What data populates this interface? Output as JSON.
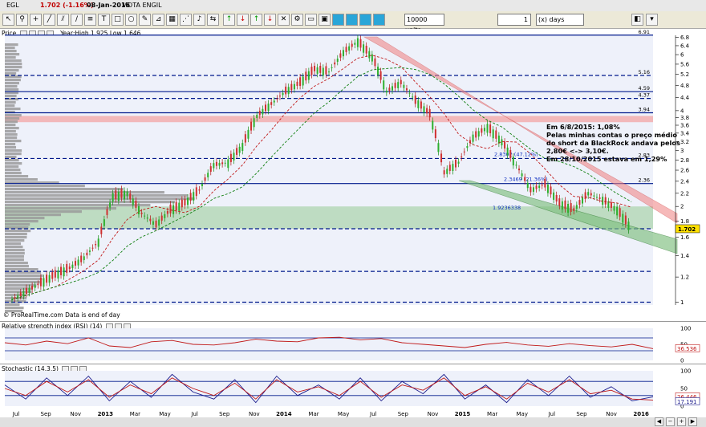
{
  "window": {
    "instrument": "EGL",
    "last_price": "1.702 (-1.16%)",
    "date": "08-Jan-2016",
    "company": "MOTA ENGIL"
  },
  "toolbar": {
    "units_value": "10000 units",
    "period_value": "1",
    "period_unit": "(x) days"
  },
  "price_panel": {
    "label": "Price",
    "range_text": "Year:High 1.925 Low 1.646",
    "footer": "© ProRealTime.com  Data is end of day",
    "current_price_badge": "1.702",
    "level_labels": [
      "6.91",
      "5.16",
      "4.59",
      "4.37",
      "3.94",
      "2.83",
      "2.36"
    ],
    "fib_labels": [
      "2.8302 (47.12%)",
      "2.3469 (21.36%)",
      "1.9236338"
    ]
  },
  "annotation": {
    "lines": [
      "Em 6/8/2015: 1,08%",
      "Pelas minhas contas o preço médio",
      "do short da BlackRock andava pelos",
      "2,80€ <-> 3,10€.",
      "Em 28/10/2015 estava em 1,29%"
    ]
  },
  "rsi_panel": {
    "label": "Relative strength index (RSI) (14)",
    "value": "36.536",
    "ticks": [
      "100",
      "50",
      "0"
    ]
  },
  "stoch_panel": {
    "label": "Stochastic (14,3,5)",
    "value1": "26.446",
    "value2": "17.191",
    "ticks": [
      "100",
      "50",
      "0"
    ]
  },
  "chart_data": {
    "type": "line",
    "x_ticks": [
      "Jul",
      "Sep",
      "Nov",
      "2013",
      "Mar",
      "May",
      "Jul",
      "Sep",
      "Nov",
      "2014",
      "Mar",
      "May",
      "Jul",
      "Sep",
      "Nov",
      "2015",
      "Mar",
      "May",
      "Jul",
      "Sep",
      "Nov",
      "2016"
    ],
    "y_ticks": [
      "6.8",
      "6.4",
      "6",
      "5.6",
      "5.2",
      "4.8",
      "4.4",
      "4",
      "3.8",
      "3.6",
      "3.4",
      "3.2",
      "3",
      "2.8",
      "2.6",
      "2.4",
      "2.2",
      "2",
      "1.8",
      "1.6",
      "1.4",
      "1.2",
      "1"
    ],
    "y_scale": "log",
    "ylim": [
      0.98,
      6.9
    ],
    "series": [
      {
        "values": [
          [
            "2012-06",
            1.02
          ],
          [
            "2012-07",
            1.08
          ],
          [
            "2012-08",
            1.15
          ],
          [
            "2012-09",
            1.22
          ],
          [
            "2012-10",
            1.28
          ],
          [
            "2012-11",
            1.38
          ],
          [
            "2012-12",
            1.55
          ],
          [
            "2013-01",
            2.15
          ],
          [
            "2013-02",
            2.2
          ],
          [
            "2013-03",
            1.9
          ],
          [
            "2013-04",
            1.75
          ],
          [
            "2013-05",
            1.95
          ],
          [
            "2013-06",
            2.05
          ],
          [
            "2013-07",
            2.25
          ],
          [
            "2013-08",
            2.7
          ],
          [
            "2013-09",
            2.75
          ],
          [
            "2013-10",
            3.1
          ],
          [
            "2013-11",
            3.85
          ],
          [
            "2013-12",
            4.2
          ],
          [
            "2014-01",
            4.6
          ],
          [
            "2014-02",
            4.9
          ],
          [
            "2014-03",
            5.4
          ],
          [
            "2014-04",
            5.3
          ],
          [
            "2014-05",
            6.1
          ],
          [
            "2014-06",
            6.6
          ],
          [
            "2014-07",
            5.9
          ],
          [
            "2014-08",
            4.6
          ],
          [
            "2014-09",
            4.9
          ],
          [
            "2014-10",
            4.3
          ],
          [
            "2014-11",
            3.9
          ],
          [
            "2014-12",
            2.55
          ],
          [
            "2015-01",
            2.75
          ],
          [
            "2015-02",
            3.3
          ],
          [
            "2015-03",
            3.55
          ],
          [
            "2015-04",
            3.2
          ],
          [
            "2015-05",
            2.7
          ],
          [
            "2015-06",
            2.25
          ],
          [
            "2015-07",
            2.35
          ],
          [
            "2015-08",
            2.05
          ],
          [
            "2015-09",
            1.95
          ],
          [
            "2015-10",
            2.2
          ],
          [
            "2015-11",
            2.1
          ],
          [
            "2015-12",
            1.95
          ],
          [
            "2016-01",
            1.702
          ]
        ]
      }
    ],
    "horizontal_levels": [
      6.91,
      5.16,
      4.59,
      4.37,
      3.94,
      2.83,
      2.36,
      1.702
    ],
    "rsi": [
      55,
      48,
      60,
      52,
      70,
      45,
      40,
      58,
      62,
      50,
      48,
      55,
      66,
      60,
      58,
      70,
      72,
      64,
      68,
      55,
      50,
      45,
      40,
      50,
      56,
      48,
      44,
      52,
      46,
      42,
      50,
      36.5
    ],
    "stoch_k": [
      60,
      20,
      80,
      30,
      85,
      15,
      70,
      25,
      90,
      40,
      20,
      75,
      10,
      85,
      30,
      60,
      20,
      80,
      15,
      70,
      35,
      90,
      20,
      60,
      10,
      75,
      30,
      85,
      25,
      55,
      15,
      26.4
    ],
    "stoch_d": [
      50,
      30,
      70,
      40,
      75,
      25,
      60,
      35,
      80,
      50,
      30,
      65,
      20,
      75,
      40,
      55,
      30,
      70,
      25,
      60,
      45,
      80,
      30,
      55,
      20,
      65,
      40,
      75,
      35,
      45,
      20,
      17.2
    ]
  }
}
